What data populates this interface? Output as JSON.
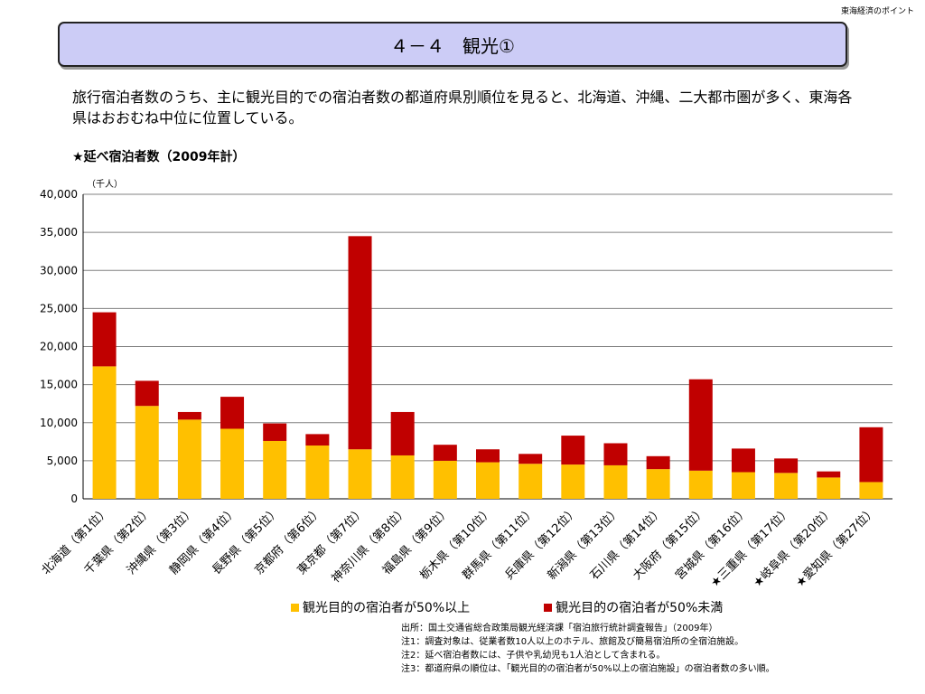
{
  "header_corner": "東海経済のポイント",
  "title": "４－４　観光①",
  "description": "旅行宿泊者数のうち、主に観光目的での宿泊者数の都道府県別順位を見ると、北海道、沖縄、二大都市圏が多く、東海各県はおおむね中位に位置している。",
  "chart_title": "★延べ宿泊者数（2009年計）",
  "notes": [
    "出所：国土交通省総合政策局観光経済課「宿泊旅行統計調査報告」（2009年）",
    "注1：調査対象は、従業者数10人以上のホテル、旅館及び簡易宿泊所の全宿泊施設。",
    "注2：延べ宿泊者数には、子供や乳幼児も1人泊として含まれる。",
    "注3：都道府県の順位は、「観光目的の宿泊者が50%以上の宿泊施設」の宿泊者数の多い順。"
  ],
  "colors": {
    "over50": "#ffc000",
    "under50": "#c00000",
    "title_bg": "#ccccf6",
    "grid": "#808080"
  },
  "chart_data": {
    "type": "bar",
    "stacked": true,
    "unit_label": "（千人）",
    "ylim": [
      0,
      40000
    ],
    "yticks": [
      0,
      5000,
      10000,
      15000,
      20000,
      25000,
      30000,
      35000,
      40000
    ],
    "ytick_labels": [
      "0",
      "5,000",
      "10,000",
      "15,000",
      "20,000",
      "25,000",
      "30,000",
      "35,000",
      "40,000"
    ],
    "grid": true,
    "legend_position": "bottom",
    "categories": [
      "北海道（第1位）",
      "千葉県（第2位）",
      "沖縄県（第3位）",
      "静岡県（第4位）",
      "長野県（第5位）",
      "京都府（第6位）",
      "東京都（第7位）",
      "神奈川県（第8位）",
      "福島県（第9位）",
      "栃木県（第10位）",
      "群馬県（第11位）",
      "兵庫県（第12位）",
      "新潟県（第13位）",
      "石川県（第14位）",
      "大阪府（第15位）",
      "宮城県（第16位）",
      "★三重県（第17位）",
      "★岐阜県（第20位）",
      "★愛知県（第27位）"
    ],
    "series": [
      {
        "name": "観光目的の宿泊者が50%以上",
        "color": "#ffc000",
        "values": [
          17400,
          12200,
          10400,
          9200,
          7600,
          7000,
          6500,
          5700,
          5000,
          4800,
          4600,
          4500,
          4400,
          3900,
          3700,
          3500,
          3400,
          2800,
          2200
        ]
      },
      {
        "name": "観光目的の宿泊者が50%未満",
        "color": "#c00000",
        "values": [
          7100,
          3300,
          1000,
          4200,
          2300,
          1500,
          28000,
          5700,
          2100,
          1700,
          1300,
          3800,
          2900,
          1700,
          12000,
          3100,
          1900,
          800,
          7200
        ]
      }
    ]
  }
}
